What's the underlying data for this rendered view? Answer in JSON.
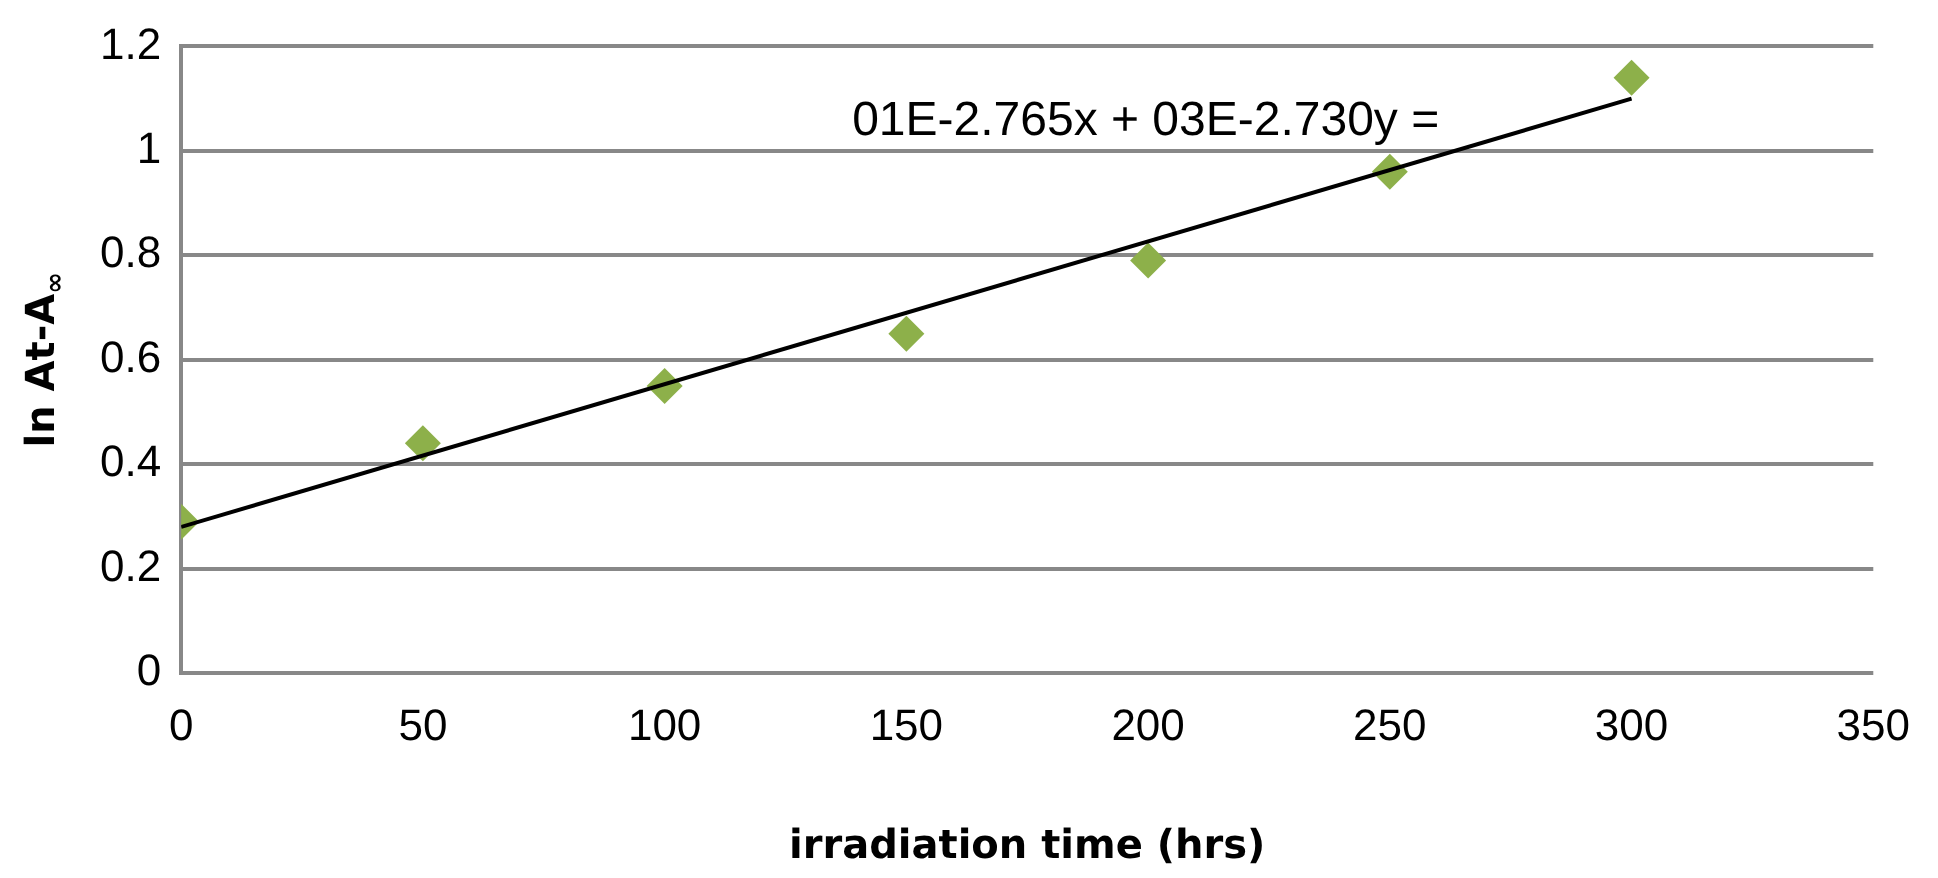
{
  "chart_data": {
    "type": "scatter",
    "xlabel": "irradiation time (hrs)",
    "ylabel": "ln At-A$_{∞}$",
    "xlim": [
      0,
      350
    ],
    "xticks": [
      0,
      50,
      100,
      150,
      200,
      250,
      300,
      350
    ],
    "ylim": [
      0,
      1.2
    ],
    "yticks": [
      0,
      0.2,
      0.4,
      0.6,
      0.8,
      1,
      1.2
    ],
    "grid": "y",
    "legend": false,
    "marker": "diamond",
    "series": [
      {
        "color": "#8db04a",
        "x": [
          0,
          50,
          100,
          150,
          200,
          250,
          300
        ],
        "values": [
          0.29,
          0.44,
          0.55,
          0.65,
          0.79,
          0.96,
          1.14
        ]
      },
      {
        "type": "line",
        "color": "#000000",
        "x": [
          0,
          300
        ],
        "values": [
          0.28,
          1.1
        ],
        "marker": "none"
      }
    ],
    "annotations": [
      "01E-2.765x + 03E-2.730y ="
    ]
  }
}
